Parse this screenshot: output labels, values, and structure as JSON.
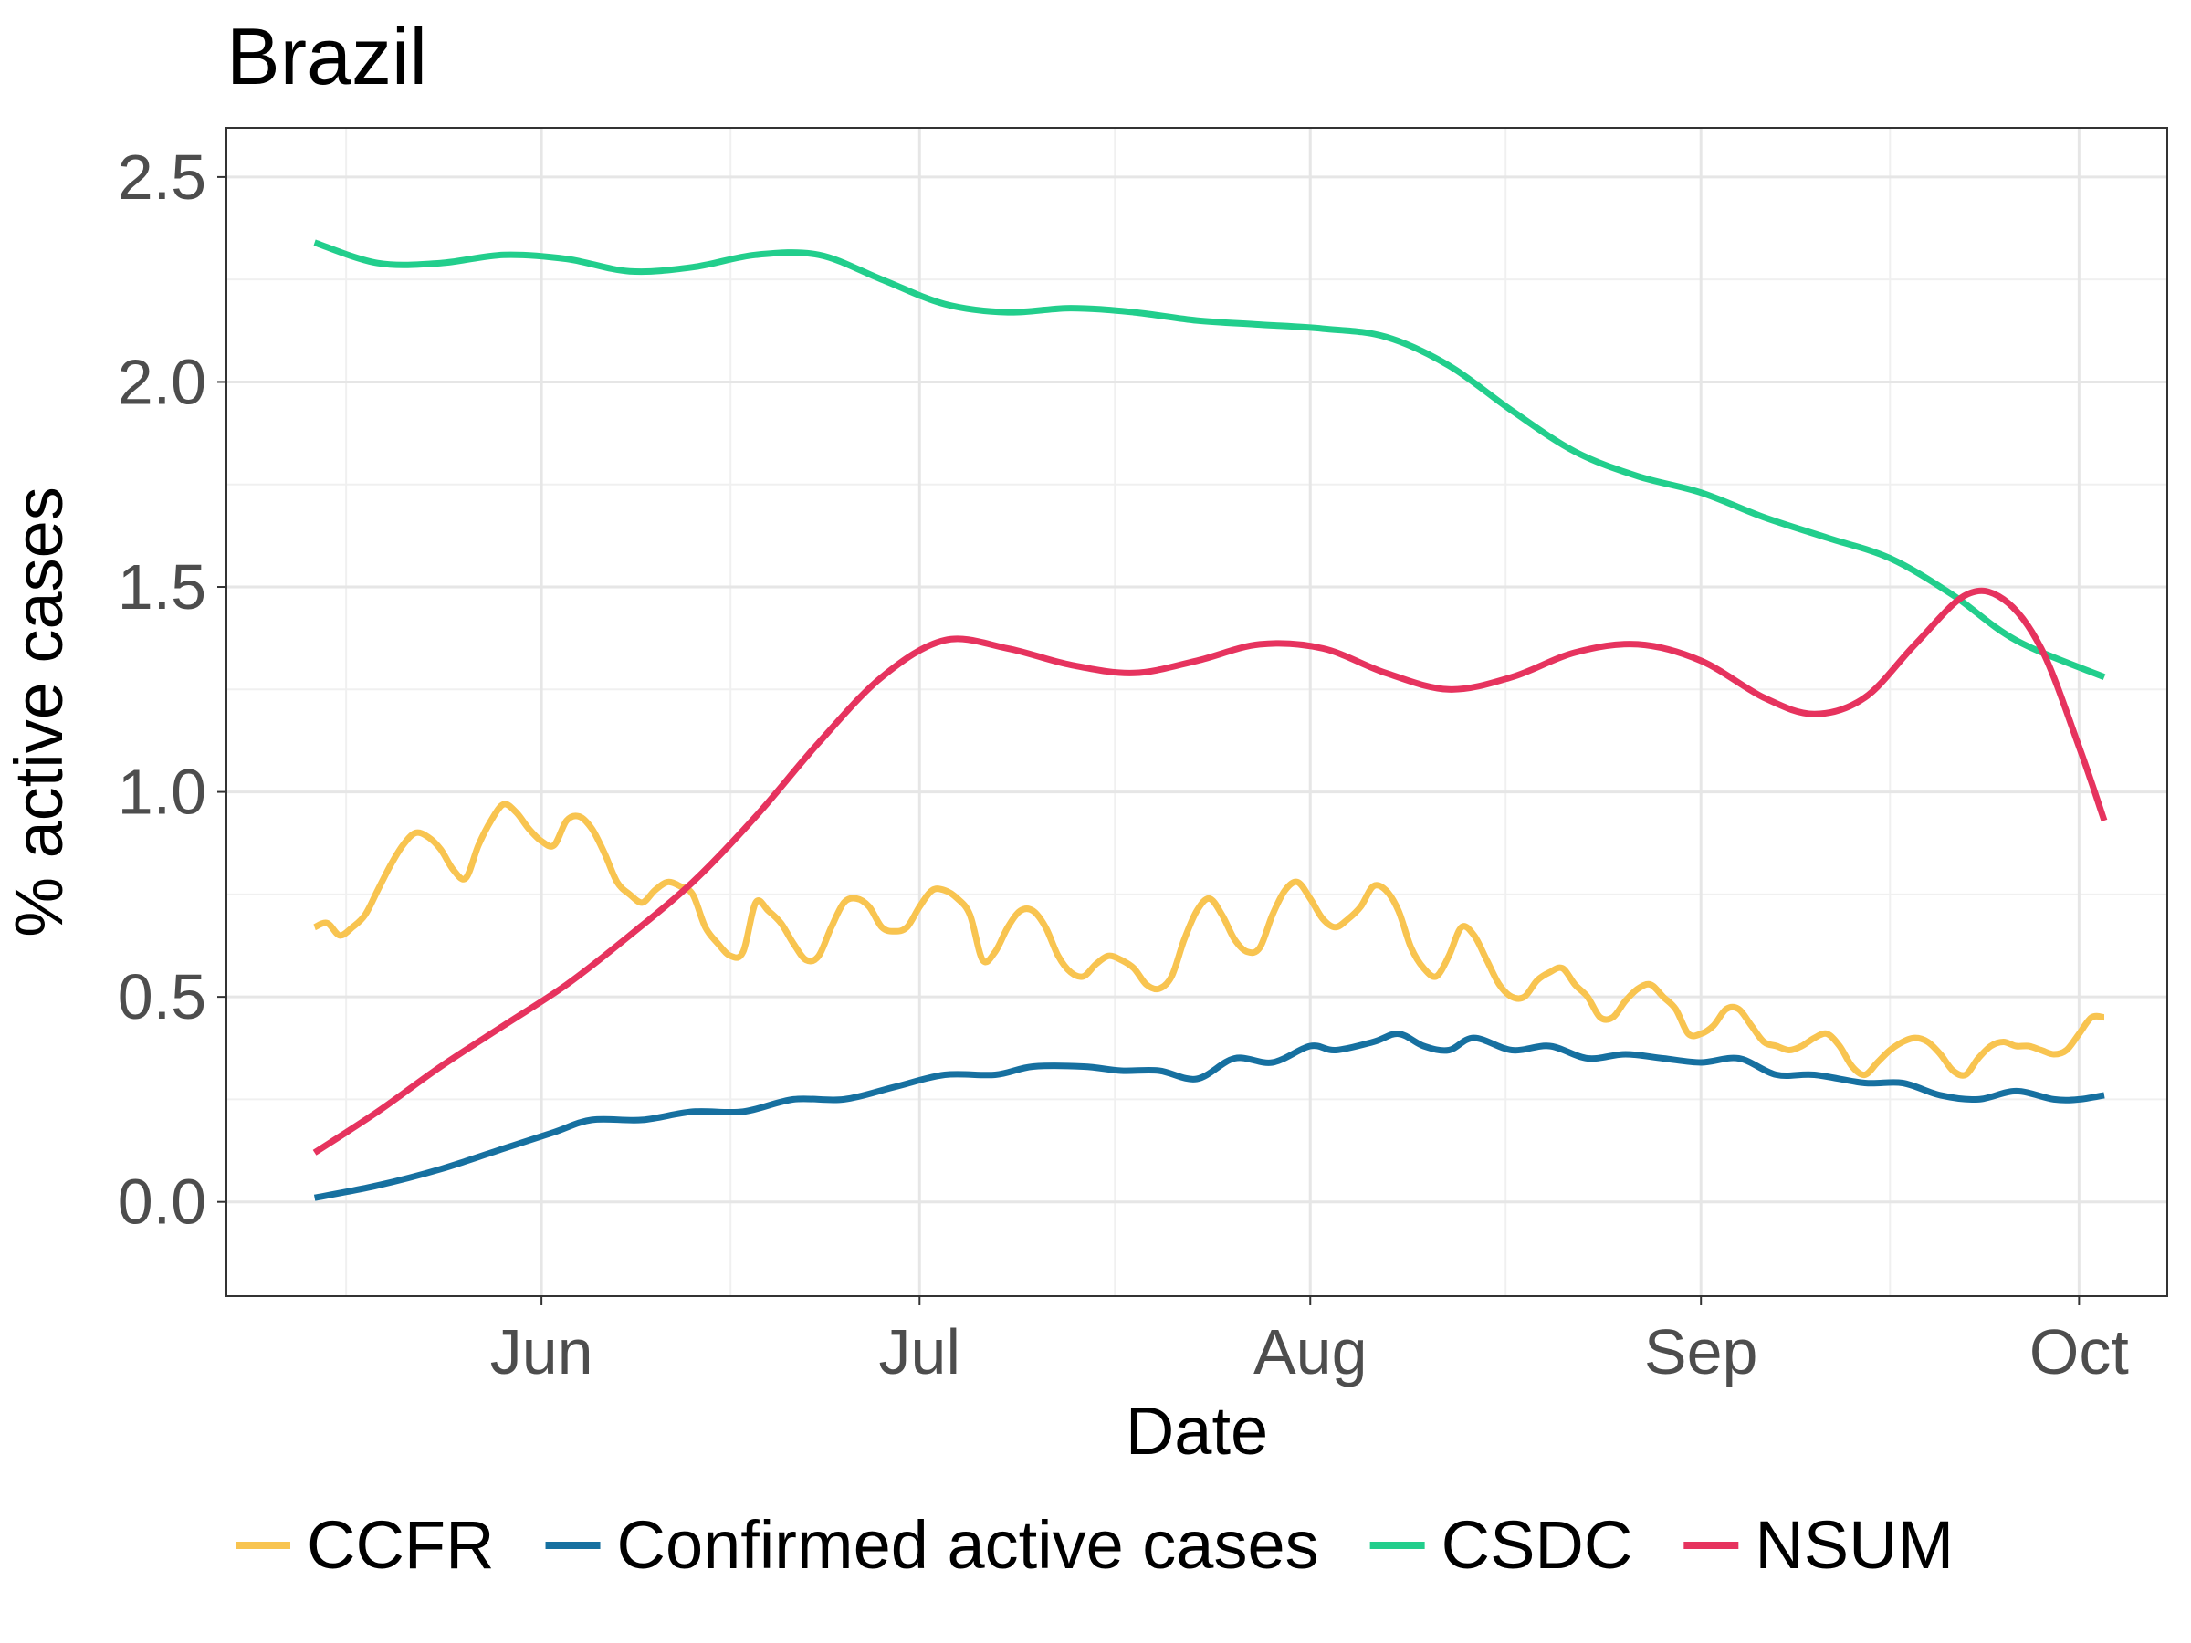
{
  "chart_data": {
    "type": "line",
    "title": "Brazil",
    "xlabel": "Date",
    "ylabel": "% active cases",
    "x_range": [
      "2020-05-07",
      "2020-10-08"
    ],
    "ylim": [
      -0.23,
      2.62
    ],
    "y_ticks": [
      0.0,
      0.5,
      1.0,
      1.5,
      2.0,
      2.5
    ],
    "y_tick_labels": [
      "0.0",
      "0.5",
      "1.0",
      "1.5",
      "2.0",
      "2.5"
    ],
    "x_ticks": [
      "2020-06-01",
      "2020-07-01",
      "2020-08-01",
      "2020-09-01",
      "2020-10-01"
    ],
    "x_tick_labels": [
      "Jun",
      "Jul",
      "Aug",
      "Sep",
      "Oct"
    ],
    "grid": true,
    "legend_position": "bottom",
    "series": [
      {
        "name": "CCFR",
        "color": "#F8C450",
        "x": [
          "2020-05-14",
          "2020-05-15",
          "2020-05-16",
          "2020-05-17",
          "2020-05-18",
          "2020-05-19",
          "2020-05-20",
          "2020-05-21",
          "2020-05-22",
          "2020-05-23",
          "2020-05-24",
          "2020-05-25",
          "2020-05-26",
          "2020-05-27",
          "2020-05-28",
          "2020-05-29",
          "2020-05-30",
          "2020-05-31",
          "2020-06-01",
          "2020-06-02",
          "2020-06-03",
          "2020-06-04",
          "2020-06-05",
          "2020-06-06",
          "2020-06-07",
          "2020-06-08",
          "2020-06-09",
          "2020-06-10",
          "2020-06-11",
          "2020-06-12",
          "2020-06-13",
          "2020-06-14",
          "2020-06-15",
          "2020-06-16",
          "2020-06-17",
          "2020-06-18",
          "2020-06-19",
          "2020-06-20",
          "2020-06-21",
          "2020-06-22",
          "2020-06-23",
          "2020-06-24",
          "2020-06-25",
          "2020-06-26",
          "2020-06-27",
          "2020-06-28",
          "2020-06-29",
          "2020-06-30",
          "2020-07-01",
          "2020-07-02",
          "2020-07-03",
          "2020-07-04",
          "2020-07-05",
          "2020-07-06",
          "2020-07-07",
          "2020-07-08",
          "2020-07-09",
          "2020-07-10",
          "2020-07-11",
          "2020-07-12",
          "2020-07-13",
          "2020-07-14",
          "2020-07-15",
          "2020-07-16",
          "2020-07-17",
          "2020-07-18",
          "2020-07-19",
          "2020-07-20",
          "2020-07-21",
          "2020-07-22",
          "2020-07-23",
          "2020-07-24",
          "2020-07-25",
          "2020-07-26",
          "2020-07-27",
          "2020-07-28",
          "2020-07-29",
          "2020-07-30",
          "2020-07-31",
          "2020-08-01",
          "2020-08-02",
          "2020-08-03",
          "2020-08-04",
          "2020-08-05",
          "2020-08-06",
          "2020-08-07",
          "2020-08-08",
          "2020-08-09",
          "2020-08-10",
          "2020-08-11",
          "2020-08-12",
          "2020-08-13",
          "2020-08-14",
          "2020-08-15",
          "2020-08-16",
          "2020-08-17",
          "2020-08-18",
          "2020-08-19",
          "2020-08-20",
          "2020-08-21",
          "2020-08-22",
          "2020-08-23",
          "2020-08-24",
          "2020-08-25",
          "2020-08-26",
          "2020-08-27",
          "2020-08-28",
          "2020-08-29",
          "2020-08-30",
          "2020-08-31",
          "2020-09-01",
          "2020-09-02",
          "2020-09-03",
          "2020-09-04",
          "2020-09-05",
          "2020-09-06",
          "2020-09-07",
          "2020-09-08",
          "2020-09-09",
          "2020-09-10",
          "2020-09-11",
          "2020-09-12",
          "2020-09-13",
          "2020-09-14",
          "2020-09-15",
          "2020-09-16",
          "2020-09-17",
          "2020-09-18",
          "2020-09-19",
          "2020-09-20",
          "2020-09-21",
          "2020-09-22",
          "2020-09-23",
          "2020-09-24",
          "2020-09-25",
          "2020-09-26",
          "2020-09-27",
          "2020-09-28",
          "2020-09-29",
          "2020-09-30",
          "2020-10-01",
          "2020-10-02",
          "2020-10-03"
        ],
        "y": [
          0.67,
          0.68,
          0.65,
          0.67,
          0.7,
          0.76,
          0.82,
          0.87,
          0.9,
          0.89,
          0.86,
          0.81,
          0.79,
          0.87,
          0.93,
          0.97,
          0.95,
          0.91,
          0.88,
          0.87,
          0.93,
          0.94,
          0.91,
          0.85,
          0.78,
          0.75,
          0.73,
          0.76,
          0.78,
          0.77,
          0.75,
          0.67,
          0.63,
          0.6,
          0.61,
          0.73,
          0.71,
          0.68,
          0.63,
          0.59,
          0.6,
          0.67,
          0.73,
          0.74,
          0.72,
          0.67,
          0.66,
          0.67,
          0.72,
          0.76,
          0.76,
          0.74,
          0.7,
          0.59,
          0.61,
          0.67,
          0.71,
          0.71,
          0.67,
          0.6,
          0.56,
          0.55,
          0.58,
          0.6,
          0.59,
          0.57,
          0.53,
          0.52,
          0.55,
          0.64,
          0.71,
          0.74,
          0.7,
          0.64,
          0.61,
          0.62,
          0.7,
          0.76,
          0.78,
          0.74,
          0.69,
          0.67,
          0.69,
          0.72,
          0.77,
          0.76,
          0.71,
          0.62,
          0.57,
          0.55,
          0.6,
          0.67,
          0.65,
          0.59,
          0.53,
          0.5,
          0.5,
          0.54,
          0.56,
          0.57,
          0.53,
          0.5,
          0.45,
          0.45,
          0.49,
          0.52,
          0.53,
          0.5,
          0.47,
          0.41,
          0.41,
          0.43,
          0.47,
          0.47,
          0.43,
          0.39,
          0.38,
          0.37,
          0.38,
          0.4,
          0.41,
          0.38,
          0.33,
          0.31,
          0.34,
          0.37,
          0.39,
          0.4,
          0.39,
          0.36,
          0.32,
          0.31,
          0.35,
          0.38,
          0.39,
          0.38,
          0.38,
          0.37,
          0.36,
          0.37,
          0.41,
          0.45,
          0.45
        ]
      },
      {
        "name": "Confirmed active cases",
        "color": "#1670A0",
        "x": [
          "2020-05-14",
          "2020-05-19",
          "2020-05-24",
          "2020-05-29",
          "2020-06-02",
          "2020-06-05",
          "2020-06-09",
          "2020-06-13",
          "2020-06-17",
          "2020-06-21",
          "2020-06-25",
          "2020-06-29",
          "2020-07-03",
          "2020-07-07",
          "2020-07-10",
          "2020-07-14",
          "2020-07-17",
          "2020-07-20",
          "2020-07-23",
          "2020-07-26",
          "2020-07-29",
          "2020-08-01",
          "2020-08-03",
          "2020-08-06",
          "2020-08-08",
          "2020-08-10",
          "2020-08-12",
          "2020-08-14",
          "2020-08-17",
          "2020-08-20",
          "2020-08-23",
          "2020-08-26",
          "2020-08-29",
          "2020-09-01",
          "2020-09-04",
          "2020-09-07",
          "2020-09-10",
          "2020-09-14",
          "2020-09-17",
          "2020-09-20",
          "2020-09-23",
          "2020-09-26",
          "2020-09-29",
          "2020-10-01",
          "2020-10-03"
        ],
        "y": [
          0.01,
          0.04,
          0.08,
          0.13,
          0.17,
          0.2,
          0.2,
          0.22,
          0.22,
          0.25,
          0.25,
          0.28,
          0.31,
          0.31,
          0.33,
          0.33,
          0.32,
          0.32,
          0.3,
          0.35,
          0.34,
          0.38,
          0.37,
          0.39,
          0.41,
          0.38,
          0.37,
          0.4,
          0.37,
          0.38,
          0.35,
          0.36,
          0.35,
          0.34,
          0.35,
          0.31,
          0.31,
          0.29,
          0.29,
          0.26,
          0.25,
          0.27,
          0.25,
          0.25,
          0.26
        ]
      },
      {
        "name": "CSDC",
        "color": "#22CE8C",
        "x": [
          "2020-05-14",
          "2020-05-19",
          "2020-05-24",
          "2020-05-29",
          "2020-06-03",
          "2020-06-08",
          "2020-06-13",
          "2020-06-18",
          "2020-06-23",
          "2020-06-28",
          "2020-07-03",
          "2020-07-08",
          "2020-07-13",
          "2020-07-18",
          "2020-07-23",
          "2020-07-28",
          "2020-08-02",
          "2020-08-07",
          "2020-08-12",
          "2020-08-17",
          "2020-08-22",
          "2020-08-27",
          "2020-09-01",
          "2020-09-06",
          "2020-09-11",
          "2020-09-16",
          "2020-09-21",
          "2020-09-26",
          "2020-10-03"
        ],
        "y": [
          2.34,
          2.29,
          2.29,
          2.31,
          2.3,
          2.27,
          2.28,
          2.31,
          2.31,
          2.25,
          2.19,
          2.17,
          2.18,
          2.17,
          2.15,
          2.14,
          2.13,
          2.11,
          2.04,
          1.93,
          1.83,
          1.77,
          1.73,
          1.67,
          1.62,
          1.57,
          1.48,
          1.37,
          1.28
        ]
      },
      {
        "name": "NSUM",
        "color": "#E6335E",
        "x": [
          "2020-05-14",
          "2020-05-19",
          "2020-05-24",
          "2020-05-29",
          "2020-06-03",
          "2020-06-08",
          "2020-06-13",
          "2020-06-18",
          "2020-06-23",
          "2020-06-28",
          "2020-07-03",
          "2020-07-08",
          "2020-07-13",
          "2020-07-18",
          "2020-07-23",
          "2020-07-28",
          "2020-08-02",
          "2020-08-07",
          "2020-08-12",
          "2020-08-17",
          "2020-08-22",
          "2020-08-27",
          "2020-09-01",
          "2020-09-06",
          "2020-09-10",
          "2020-09-14",
          "2020-09-18",
          "2020-09-22",
          "2020-09-25",
          "2020-09-28",
          "2020-10-01",
          "2020-10-03"
        ],
        "y": [
          0.12,
          0.22,
          0.33,
          0.43,
          0.53,
          0.65,
          0.78,
          0.94,
          1.12,
          1.28,
          1.37,
          1.35,
          1.31,
          1.29,
          1.32,
          1.36,
          1.35,
          1.29,
          1.25,
          1.28,
          1.34,
          1.36,
          1.32,
          1.23,
          1.19,
          1.23,
          1.36,
          1.48,
          1.47,
          1.35,
          1.11,
          0.93
        ]
      }
    ]
  }
}
